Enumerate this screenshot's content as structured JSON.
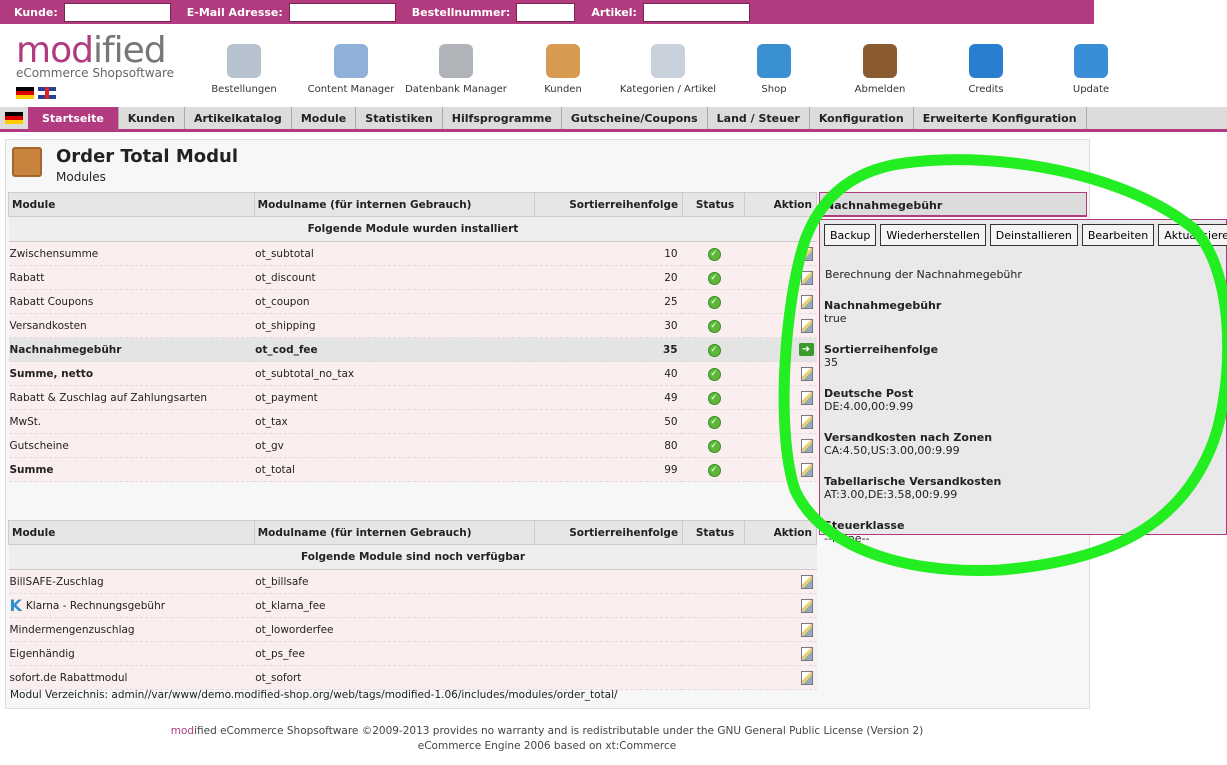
{
  "search": {
    "kunde": "Kunde:",
    "email": "E-Mail Adresse:",
    "bestellnummer": "Bestellnummer:",
    "artikel": "Artikel:"
  },
  "logo": {
    "mod": "mod",
    "ified": "ified",
    "sub": "eCommerce Shopsoftware"
  },
  "tools": [
    {
      "label": "Bestellungen",
      "color": "#b7c2d0"
    },
    {
      "label": "Content Manager",
      "color": "#8fb0d8"
    },
    {
      "label": "Datenbank Manager",
      "color": "#b0b4b8"
    },
    {
      "label": "Kunden",
      "color": "#d89a50"
    },
    {
      "label": "Kategorien / Artikel",
      "color": "#c8d0dc"
    },
    {
      "label": "Shop",
      "color": "#3a90d0"
    },
    {
      "label": "Abmelden",
      "color": "#8a5a30"
    },
    {
      "label": "Credits",
      "color": "#2a7ed0"
    },
    {
      "label": "Update",
      "color": "#3a8ed8"
    }
  ],
  "nav": [
    "Startseite",
    "Kunden",
    "Artikelkatalog",
    "Module",
    "Statistiken",
    "Hilfsprogramme",
    "Gutscheine/Coupons",
    "Land / Steuer",
    "Konfiguration",
    "Erweiterte Konfiguration"
  ],
  "page": {
    "title": "Order Total Modul",
    "subtitle": "Modules"
  },
  "columns": [
    "Module",
    "Modulname (für internen Gebrauch)",
    "Sortierreihenfolge",
    "Status",
    "Aktion"
  ],
  "installed": {
    "heading": "Folgende Module wurden installiert",
    "rows": [
      {
        "name": "Zwischensumme",
        "code": "ot_subtotal",
        "sort": "10"
      },
      {
        "name": "Rabatt",
        "code": "ot_discount",
        "sort": "20"
      },
      {
        "name": "Rabatt Coupons",
        "code": "ot_coupon",
        "sort": "25"
      },
      {
        "name": "Versandkosten",
        "code": "ot_shipping",
        "sort": "30"
      },
      {
        "name": "Nachnahmegebühr",
        "code": "ot_cod_fee",
        "sort": "35",
        "selected": true
      },
      {
        "name": "Summe, netto",
        "code": "ot_subtotal_no_tax",
        "sort": "40",
        "bold": true
      },
      {
        "name": "Rabatt & Zuschlag auf Zahlungsarten",
        "code": "ot_payment",
        "sort": "49"
      },
      {
        "name": "MwSt.",
        "code": "ot_tax",
        "sort": "50"
      },
      {
        "name": "Gutscheine",
        "code": "ot_gv",
        "sort": "80"
      },
      {
        "name": "Summe",
        "code": "ot_total",
        "sort": "99",
        "bold": true
      }
    ]
  },
  "available": {
    "heading": "Folgende Module sind noch verfügbar",
    "rows": [
      {
        "name": "BillSAFE-Zuschlag",
        "code": "ot_billsafe"
      },
      {
        "name": "Klarna - Rechnungsgebühr",
        "code": "ot_klarna_fee",
        "klarna": "K"
      },
      {
        "name": "Mindermengenzuschlag",
        "code": "ot_loworderfee"
      },
      {
        "name": "Eigenhändig",
        "code": "ot_ps_fee"
      },
      {
        "name": "sofort.de Rabattmodul",
        "code": "ot_sofort"
      }
    ]
  },
  "path": "Modul Verzeichnis: admin//var/www/demo.modified-shop.org/web/tags/modified-1.06/includes/modules/order_total/",
  "panel": {
    "title": "Nachnahmegebühr",
    "buttons": [
      "Backup",
      "Wiederherstellen",
      "Deinstallieren",
      "Bearbeiten",
      "Aktualisieren"
    ],
    "description": "Berechnung der Nachnahmegebühr",
    "fields": [
      {
        "label": "Nachnahmegebühr",
        "value": "true"
      },
      {
        "label": "Sortierreihenfolge",
        "value": "35"
      },
      {
        "label": "Deutsche Post",
        "value": "DE:4.00,00:9.99"
      },
      {
        "label": "Versandkosten nach Zonen",
        "value": "CA:4.50,US:3.00,00:9.99"
      },
      {
        "label": "Tabellarische Versandkosten",
        "value": "AT:3.00,DE:3.58,00:9.99"
      },
      {
        "label": "Steuerklasse",
        "value": "--keine--"
      }
    ]
  },
  "footer": {
    "mod": "mod",
    "line1": "ified eCommerce Shopsoftware ©2009-2013 provides no warranty and is redistributable under the GNU General Public License (Version 2)",
    "line2": "eCommerce Engine 2006 based on xt:Commerce"
  },
  "colors": {
    "brand": "#b13b7e",
    "annotation": "#22ee22"
  }
}
